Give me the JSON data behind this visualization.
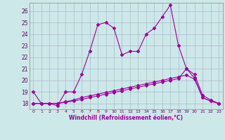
{
  "xlabel": "Windchill (Refroidissement éolien,°C)",
  "background_color": "#cce8e8",
  "grid_color": "#aaaacc",
  "line_color": "#990099",
  "xlim": [
    -0.5,
    23.5
  ],
  "ylim": [
    17.5,
    26.7
  ],
  "yticks": [
    18,
    19,
    20,
    21,
    22,
    23,
    24,
    25,
    26
  ],
  "xticks": [
    0,
    1,
    2,
    3,
    4,
    5,
    6,
    7,
    8,
    9,
    10,
    11,
    12,
    13,
    14,
    15,
    16,
    17,
    18,
    19,
    20,
    21,
    22,
    23
  ],
  "line1_x": [
    0,
    1,
    2,
    3,
    4,
    5,
    6,
    7,
    8,
    9,
    10,
    11,
    12,
    13,
    14,
    15,
    16,
    17,
    18,
    19,
    20,
    21,
    22,
    23
  ],
  "line1_y": [
    19,
    18,
    18,
    17.8,
    19.0,
    19.0,
    20.5,
    22.5,
    24.8,
    25.0,
    24.5,
    22.2,
    22.5,
    22.5,
    24.0,
    24.5,
    25.5,
    26.5,
    23.0,
    21.0,
    20.2,
    18.5,
    18.2,
    18.0
  ],
  "line2_x": [
    0,
    1,
    2,
    3,
    4,
    5,
    6,
    7,
    8,
    9,
    10,
    11,
    12,
    13,
    14,
    15,
    16,
    17,
    18,
    19,
    20,
    21,
    22,
    23
  ],
  "line2_y": [
    18.0,
    18.0,
    18.0,
    18.0,
    18.15,
    18.3,
    18.5,
    18.65,
    18.8,
    18.95,
    19.1,
    19.25,
    19.4,
    19.55,
    19.7,
    19.85,
    20.0,
    20.15,
    20.3,
    20.45,
    20.1,
    18.5,
    18.2,
    18.0
  ],
  "line3_x": [
    0,
    1,
    2,
    3,
    4,
    5,
    6,
    7,
    8,
    9,
    10,
    11,
    12,
    13,
    14,
    15,
    16,
    17,
    18,
    19,
    20,
    21,
    22,
    23
  ],
  "line3_y": [
    18.0,
    18.0,
    18.0,
    18.0,
    18.1,
    18.2,
    18.35,
    18.5,
    18.65,
    18.8,
    18.95,
    19.1,
    19.25,
    19.4,
    19.55,
    19.7,
    19.85,
    20.0,
    20.15,
    21.0,
    20.5,
    18.7,
    18.3,
    18.0
  ]
}
